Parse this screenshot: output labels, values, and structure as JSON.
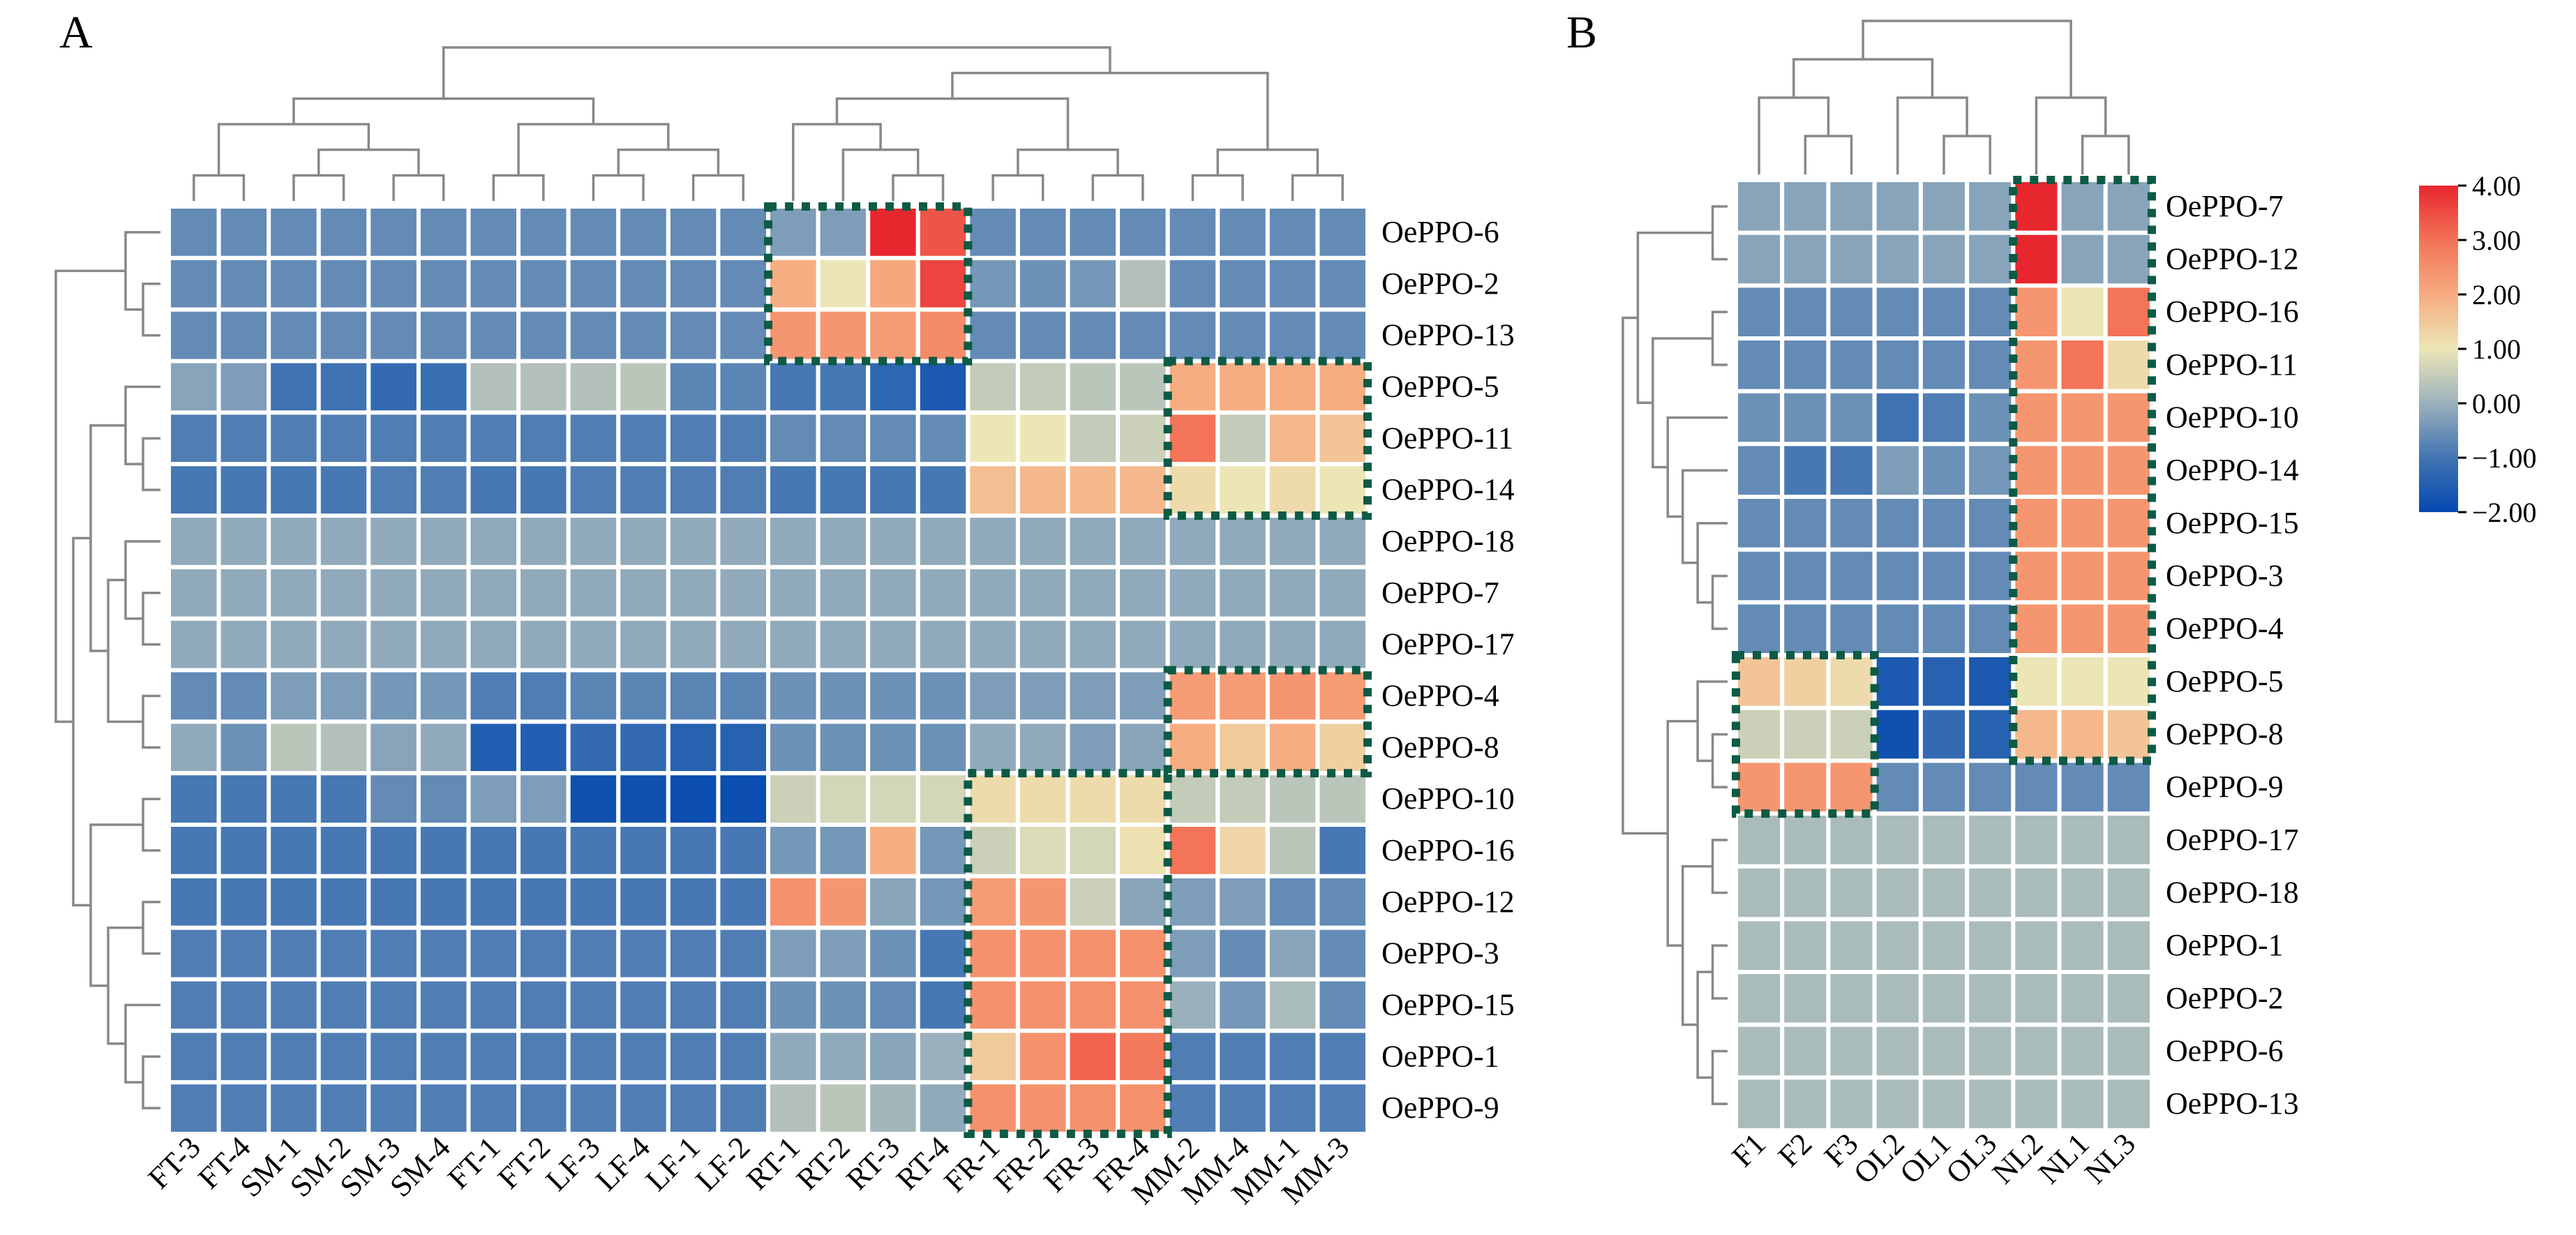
{
  "chart_data": [
    {
      "type": "heatmap",
      "panel_label": "A",
      "columns": [
        "FT-3",
        "FT-4",
        "SM-1",
        "SM-2",
        "SM-3",
        "SM-4",
        "FT-1",
        "FT-2",
        "LF-3",
        "LF-4",
        "LF-1",
        "LF-2",
        "RT-1",
        "RT-2",
        "RT-3",
        "RT-4",
        "FR-1",
        "FR-2",
        "FR-3",
        "FR-4",
        "MM-2",
        "MM-4",
        "MM-1",
        "MM-3"
      ],
      "rows": [
        "OePPO-6",
        "OePPO-2",
        "OePPO-13",
        "OePPO-5",
        "OePPO-11",
        "OePPO-14",
        "OePPO-18",
        "OePPO-7",
        "OePPO-17",
        "OePPO-4",
        "OePPO-8",
        "OePPO-10",
        "OePPO-16",
        "OePPO-12",
        "OePPO-3",
        "OePPO-15",
        "OePPO-1",
        "OePPO-9"
      ],
      "values": [
        [
          -0.6,
          -0.6,
          -0.6,
          -0.6,
          -0.6,
          -0.6,
          -0.6,
          -0.6,
          -0.6,
          -0.6,
          -0.6,
          -0.6,
          -0.3,
          -0.3,
          4.0,
          3.4,
          -0.6,
          -0.6,
          -0.6,
          -0.6,
          -0.6,
          -0.6,
          -0.6,
          -0.6
        ],
        [
          -0.6,
          -0.6,
          -0.6,
          -0.6,
          -0.6,
          -0.6,
          -0.6,
          -0.6,
          -0.6,
          -0.6,
          -0.6,
          -0.6,
          2.0,
          1.0,
          2.1,
          3.6,
          -0.4,
          -0.5,
          -0.4,
          0.3,
          -0.6,
          -0.6,
          -0.6,
          -0.6
        ],
        [
          -0.6,
          -0.6,
          -0.6,
          -0.6,
          -0.6,
          -0.6,
          -0.6,
          -0.6,
          -0.6,
          -0.6,
          -0.6,
          -0.6,
          2.4,
          2.4,
          2.3,
          2.6,
          -0.6,
          -0.6,
          -0.6,
          -0.6,
          -0.6,
          -0.6,
          -0.6,
          -0.6
        ],
        [
          -0.2,
          -0.3,
          -1.0,
          -1.0,
          -1.2,
          -1.1,
          0.3,
          0.3,
          0.3,
          0.4,
          -0.7,
          -0.7,
          -0.9,
          -0.9,
          -1.3,
          -1.6,
          0.5,
          0.5,
          0.4,
          0.4,
          2.0,
          2.0,
          2.0,
          2.0
        ],
        [
          -0.8,
          -0.8,
          -0.8,
          -0.8,
          -0.8,
          -0.8,
          -0.8,
          -0.8,
          -0.8,
          -0.8,
          -0.8,
          -0.8,
          -0.6,
          -0.6,
          -0.6,
          -0.6,
          1.0,
          1.0,
          0.5,
          0.6,
          3.0,
          0.5,
          1.8,
          1.6
        ],
        [
          -0.9,
          -0.9,
          -0.9,
          -0.9,
          -0.8,
          -0.8,
          -0.9,
          -0.9,
          -0.8,
          -0.8,
          -0.8,
          -0.8,
          -0.9,
          -0.9,
          -0.9,
          -0.9,
          1.7,
          1.8,
          1.8,
          1.8,
          1.2,
          1.0,
          1.2,
          1.0
        ],
        [
          -0.1,
          -0.1,
          -0.1,
          -0.1,
          -0.1,
          -0.1,
          -0.1,
          -0.1,
          -0.1,
          -0.1,
          -0.1,
          -0.1,
          -0.1,
          -0.1,
          -0.1,
          -0.1,
          -0.1,
          -0.1,
          -0.1,
          -0.1,
          -0.1,
          -0.1,
          -0.1,
          -0.1
        ],
        [
          -0.1,
          -0.1,
          -0.1,
          -0.1,
          -0.1,
          -0.1,
          -0.1,
          -0.1,
          -0.1,
          -0.1,
          -0.1,
          -0.1,
          -0.1,
          -0.1,
          -0.1,
          -0.1,
          -0.1,
          -0.1,
          -0.1,
          -0.1,
          -0.1,
          -0.1,
          -0.1,
          -0.1
        ],
        [
          -0.1,
          -0.1,
          -0.1,
          -0.1,
          -0.1,
          -0.1,
          -0.1,
          -0.1,
          -0.1,
          -0.1,
          -0.1,
          -0.1,
          -0.1,
          -0.1,
          -0.1,
          -0.1,
          -0.1,
          -0.1,
          -0.1,
          -0.1,
          -0.1,
          -0.1,
          -0.1,
          -0.1
        ],
        [
          -0.6,
          -0.6,
          -0.3,
          -0.3,
          -0.4,
          -0.4,
          -0.8,
          -0.8,
          -0.7,
          -0.7,
          -0.7,
          -0.7,
          -0.5,
          -0.5,
          -0.5,
          -0.5,
          -0.3,
          -0.3,
          -0.3,
          -0.3,
          2.3,
          2.3,
          2.4,
          2.3
        ],
        [
          -0.1,
          -0.5,
          0.4,
          0.3,
          -0.2,
          -0.1,
          -1.5,
          -1.5,
          -1.2,
          -1.2,
          -1.4,
          -1.4,
          -0.5,
          -0.5,
          -0.5,
          -0.5,
          -0.1,
          -0.1,
          -0.3,
          -0.2,
          2.0,
          1.5,
          2.0,
          1.4
        ],
        [
          -0.9,
          -0.9,
          -0.9,
          -0.9,
          -0.6,
          -0.6,
          -0.3,
          -0.3,
          -1.8,
          -1.8,
          -1.9,
          -1.9,
          0.6,
          0.7,
          0.7,
          0.7,
          1.2,
          1.2,
          1.2,
          1.2,
          0.5,
          0.5,
          0.4,
          0.4
        ],
        [
          -0.9,
          -0.9,
          -0.9,
          -0.9,
          -0.9,
          -0.9,
          -0.9,
          -0.9,
          -0.9,
          -0.9,
          -0.9,
          -0.9,
          -0.4,
          -0.4,
          2.0,
          -0.4,
          0.6,
          0.8,
          0.7,
          1.1,
          3.0,
          1.3,
          0.4,
          -0.9
        ],
        [
          -0.9,
          -0.9,
          -0.9,
          -0.9,
          -0.9,
          -0.9,
          -0.9,
          -0.9,
          -0.9,
          -0.9,
          -0.9,
          -0.9,
          2.5,
          2.4,
          -0.2,
          -0.4,
          2.3,
          2.4,
          0.6,
          -0.2,
          -0.3,
          -0.3,
          -0.6,
          -0.6
        ],
        [
          -0.8,
          -0.8,
          -0.8,
          -0.8,
          -0.8,
          -0.8,
          -0.8,
          -0.8,
          -0.8,
          -0.8,
          -0.8,
          -0.8,
          -0.3,
          -0.3,
          -0.5,
          -0.9,
          2.5,
          2.5,
          2.5,
          2.5,
          -0.3,
          -0.6,
          -0.2,
          -0.6
        ],
        [
          -0.8,
          -0.8,
          -0.8,
          -0.8,
          -0.8,
          -0.8,
          -0.8,
          -0.8,
          -0.8,
          -0.8,
          -0.8,
          -0.8,
          -0.5,
          -0.5,
          -0.6,
          -0.9,
          2.5,
          2.5,
          2.5,
          2.5,
          0.0,
          -0.4,
          0.2,
          -0.6
        ],
        [
          -0.8,
          -0.8,
          -0.8,
          -0.8,
          -0.8,
          -0.8,
          -0.8,
          -0.8,
          -0.8,
          -0.8,
          -0.8,
          -0.8,
          -0.1,
          -0.1,
          -0.2,
          0.0,
          1.5,
          2.5,
          3.2,
          2.9,
          -0.8,
          -0.8,
          -0.8,
          -0.8
        ],
        [
          -0.8,
          -0.8,
          -0.8,
          -0.8,
          -0.8,
          -0.8,
          -0.8,
          -0.8,
          -0.8,
          -0.8,
          -0.8,
          -0.8,
          0.3,
          0.4,
          0.1,
          -0.1,
          2.5,
          2.5,
          2.5,
          2.5,
          -0.8,
          -0.8,
          -0.8,
          -0.8
        ]
      ],
      "highlight_boxes": [
        {
          "rows": [
            0,
            2
          ],
          "cols": [
            12,
            15
          ]
        },
        {
          "rows": [
            3,
            5
          ],
          "cols": [
            20,
            23
          ]
        },
        {
          "rows": [
            9,
            10
          ],
          "cols": [
            20,
            23
          ]
        },
        {
          "rows": [
            11,
            17
          ],
          "cols": [
            16,
            19
          ]
        }
      ]
    },
    {
      "type": "heatmap",
      "panel_label": "B",
      "columns": [
        "F1",
        "F2",
        "F3",
        "OL2",
        "OL1",
        "OL3",
        "NL2",
        "NL1",
        "NL3"
      ],
      "rows": [
        "OePPO-7",
        "OePPO-12",
        "OePPO-16",
        "OePPO-11",
        "OePPO-10",
        "OePPO-14",
        "OePPO-15",
        "OePPO-3",
        "OePPO-4",
        "OePPO-5",
        "OePPO-8",
        "OePPO-9",
        "OePPO-17",
        "OePPO-18",
        "OePPO-1",
        "OePPO-2",
        "OePPO-6",
        "OePPO-13"
      ],
      "values": [
        [
          -0.2,
          -0.2,
          -0.2,
          -0.2,
          -0.2,
          -0.2,
          4.0,
          -0.2,
          -0.2
        ],
        [
          -0.2,
          -0.2,
          -0.2,
          -0.2,
          -0.2,
          -0.2,
          4.0,
          -0.2,
          -0.2
        ],
        [
          -0.6,
          -0.6,
          -0.6,
          -0.6,
          -0.6,
          -0.6,
          2.4,
          1.0,
          3.0
        ],
        [
          -0.6,
          -0.6,
          -0.6,
          -0.6,
          -0.6,
          -0.6,
          2.4,
          3.0,
          1.2
        ],
        [
          -0.5,
          -0.5,
          -0.5,
          -1.0,
          -0.8,
          -0.5,
          2.4,
          2.4,
          2.4
        ],
        [
          -0.6,
          -0.9,
          -0.9,
          -0.3,
          -0.5,
          -0.4,
          2.4,
          2.4,
          2.4
        ],
        [
          -0.6,
          -0.6,
          -0.6,
          -0.6,
          -0.6,
          -0.6,
          2.4,
          2.4,
          2.4
        ],
        [
          -0.6,
          -0.6,
          -0.6,
          -0.6,
          -0.6,
          -0.6,
          2.4,
          2.4,
          2.4
        ],
        [
          -0.6,
          -0.6,
          -0.6,
          -0.6,
          -0.6,
          -0.6,
          2.4,
          2.4,
          2.4
        ],
        [
          1.6,
          1.4,
          1.2,
          -1.6,
          -1.4,
          -1.6,
          1.0,
          1.0,
          1.0
        ],
        [
          0.6,
          0.6,
          0.6,
          -1.8,
          -1.2,
          -1.4,
          1.8,
          1.8,
          1.6
        ],
        [
          2.4,
          2.4,
          2.4,
          -0.6,
          -0.6,
          -0.6,
          -0.6,
          -0.6,
          -0.6
        ],
        [
          0.2,
          0.2,
          0.2,
          0.2,
          0.2,
          0.2,
          0.2,
          0.2,
          0.2
        ],
        [
          0.2,
          0.2,
          0.2,
          0.2,
          0.2,
          0.2,
          0.2,
          0.2,
          0.2
        ],
        [
          0.2,
          0.2,
          0.2,
          0.2,
          0.2,
          0.2,
          0.2,
          0.2,
          0.2
        ],
        [
          0.2,
          0.2,
          0.2,
          0.2,
          0.2,
          0.2,
          0.2,
          0.2,
          0.2
        ],
        [
          0.2,
          0.2,
          0.2,
          0.2,
          0.2,
          0.2,
          0.2,
          0.2,
          0.2
        ],
        [
          0.2,
          0.2,
          0.2,
          0.2,
          0.2,
          0.2,
          0.2,
          0.2,
          0.2
        ]
      ],
      "highlight_boxes": [
        {
          "rows": [
            0,
            10
          ],
          "cols": [
            6,
            8
          ]
        },
        {
          "rows": [
            9,
            11
          ],
          "cols": [
            0,
            2
          ]
        }
      ]
    }
  ],
  "colorbar": {
    "ticks": [
      "4.00",
      "3.00",
      "2.00",
      "1.00",
      "0.00",
      "−1.00",
      "−2.00"
    ],
    "vmin": -2.0,
    "vmax": 4.0
  },
  "colors": {
    "box_border": "#0d5a45",
    "dendrogram": "#888888",
    "cell_gap": "#ffffff"
  }
}
